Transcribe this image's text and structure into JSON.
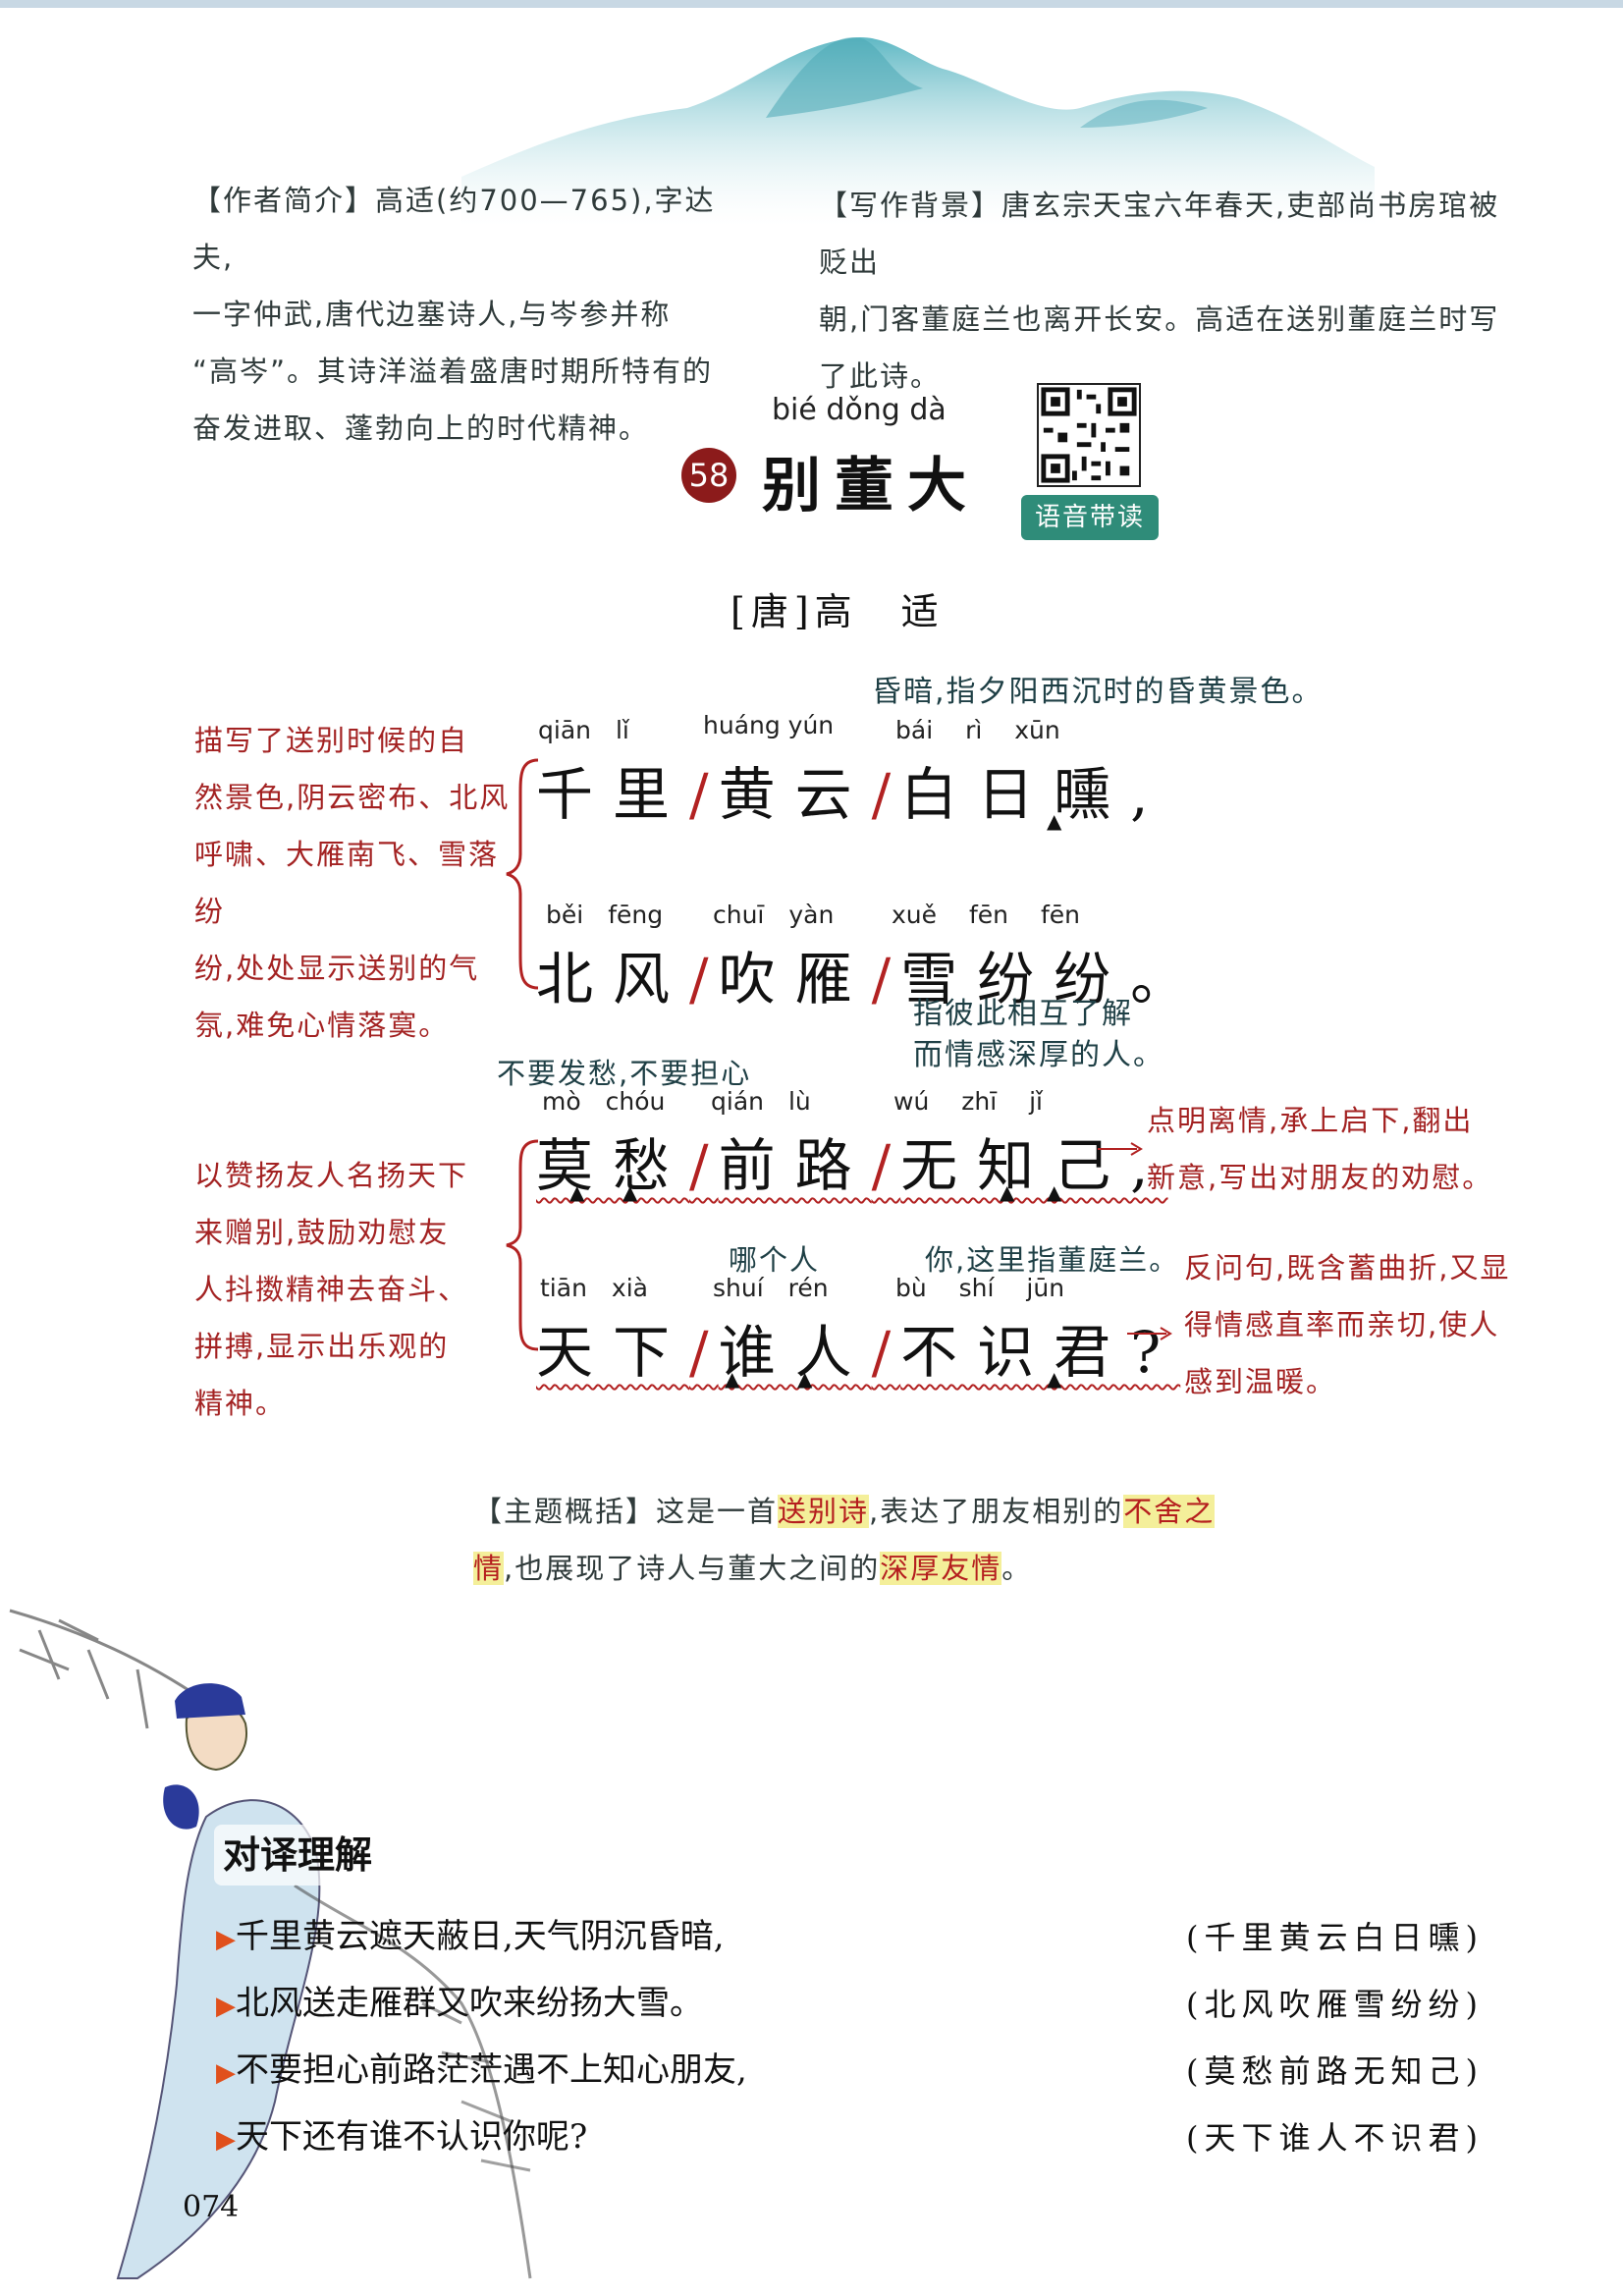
{
  "author_intro": {
    "lines": [
      "【作者简介】高适(约700—765),字达夫,",
      "一字仲武,唐代边塞诗人,与岑参并称",
      "“高岑”。其诗洋溢着盛唐时期所特有的",
      "奋发进取、蓬勃向上的时代精神。"
    ]
  },
  "background": {
    "lines": [
      "【写作背景】唐玄宗天宝六年春天,吏部尚书房琯被贬出",
      "朝,门客董庭兰也离开长安。高适在送别董庭兰时写",
      "了此诗。"
    ]
  },
  "title": {
    "pinyin": "bié dǒng dà",
    "number": "58",
    "text": "别董大",
    "voice_label": "语音带读"
  },
  "poem_author": "[唐]高　适",
  "poem": {
    "line1": {
      "p1": "qiān　lǐ",
      "p2": "huáng yún",
      "p3": "bái　 rì　 xūn",
      "text1": "千里",
      "text2": "黄云",
      "text3": "白日曛,",
      "note": "昏暗,指夕阳西沉时的昏黄景色。"
    },
    "line2": {
      "p1": "běi　fēng",
      "p2": "chuī　yàn",
      "p3": "xuě　 fēn　 fēn",
      "text1": "北风",
      "text2": "吹雁",
      "text3": "雪纷纷。",
      "note_line1": "指彼此相互了解",
      "note_line2": "而情感深厚的人。"
    },
    "line3": {
      "p1": "mò　chóu",
      "p2": "qián　lù",
      "p3": "wú　 zhī　 jǐ",
      "text1": "莫愁",
      "text2": "前路",
      "text3": "无知己,",
      "note": "不要发愁,不要担心"
    },
    "line4": {
      "p1": "tiān　xià",
      "p2": "shuí　rén",
      "p3": "bù　 shí　 jūn",
      "text1": "天下",
      "text2": "谁人",
      "text3": "不识君?",
      "note_a": "哪个人",
      "note_b": "你,这里指董庭兰。"
    }
  },
  "left_notes": {
    "top": [
      "描写了送别时候的自",
      "然景色,阴云密布、北风",
      "呼啸、大雁南飞、雪落纷",
      "纷,处处显示送别的气",
      "氛,难免心情落寞。"
    ],
    "bottom": [
      "以赞扬友人名扬天下",
      "来赠别,鼓励劝慰友",
      "人抖擞精神去奋斗、",
      "拼搏,显示出乐观的",
      "精神。"
    ]
  },
  "right_notes": {
    "top": [
      "点明离情,承上启下,翻出",
      "新意,写出对朋友的劝慰。"
    ],
    "bottom": [
      "反问句,既含蓄曲折,又显",
      "得情感直率而亲切,使人",
      "感到温暖。"
    ]
  },
  "theme": {
    "prefix": "【主题概括】这是一首",
    "k1": "送别诗",
    "mid1": ",表达了朋友相别的",
    "k2a": "不舍之",
    "k2b": "情",
    "mid2": ",也展现了诗人与董大之间的",
    "k3": "深厚友情",
    "end": "。"
  },
  "translation": {
    "heading": "对译理解",
    "items": [
      {
        "text": "千里黄云遮天蔽日,天气阴沉昏暗,",
        "ref": "(千里黄云白日曛)"
      },
      {
        "text": "北风送走雁群又吹来纷扬大雪。",
        "ref": "(北风吹雁雪纷纷)"
      },
      {
        "text": "不要担心前路茫茫遇不上知心朋友,",
        "ref": "(莫愁前路无知己)"
      },
      {
        "text": "天下还有谁不认识你呢?",
        "ref": "(天下谁人不识君)"
      }
    ]
  },
  "page_number": "074"
}
